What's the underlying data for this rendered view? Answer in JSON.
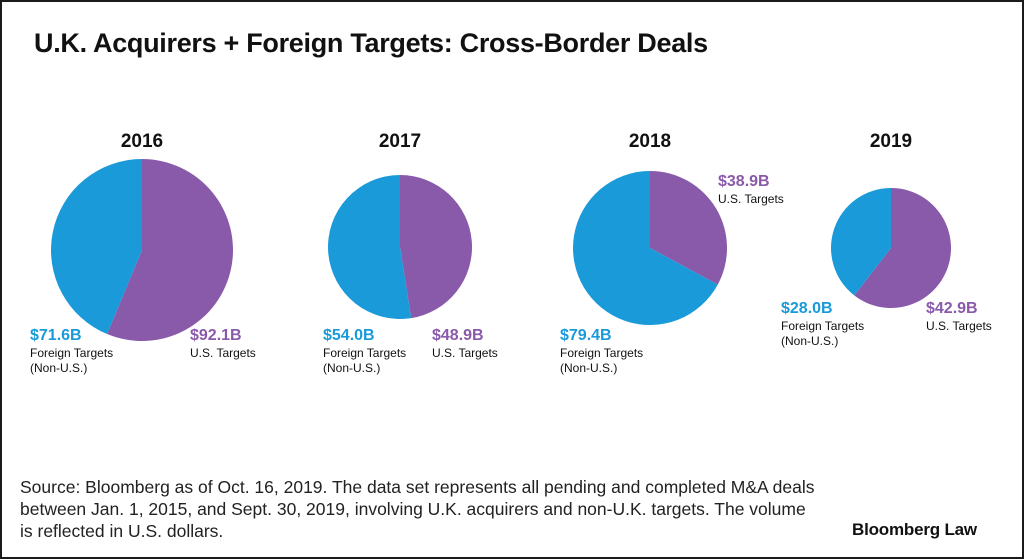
{
  "title": "U.K. Acquirers + Foreign Targets: Cross-Border Deals",
  "colors": {
    "foreign": "#1a9ad9",
    "us": "#8a5aaa"
  },
  "chart_data": [
    {
      "type": "pie",
      "title": "2016",
      "slices": [
        {
          "name": "U.S. Targets",
          "value": 92.1,
          "value_label": "$92.1B",
          "label_lines": [
            "U.S. Targets"
          ]
        },
        {
          "name": "Foreign Targets (Non-U.S.)",
          "value": 71.6,
          "value_label": "$71.6B",
          "label_lines": [
            "Foreign Targets",
            "(Non-U.S.)"
          ]
        }
      ]
    },
    {
      "type": "pie",
      "title": "2017",
      "slices": [
        {
          "name": "U.S. Targets",
          "value": 48.9,
          "value_label": "$48.9B",
          "label_lines": [
            "U.S. Targets"
          ]
        },
        {
          "name": "Foreign Targets (Non-U.S.)",
          "value": 54.0,
          "value_label": "$54.0B",
          "label_lines": [
            "Foreign Targets",
            "(Non-U.S.)"
          ]
        }
      ]
    },
    {
      "type": "pie",
      "title": "2018",
      "slices": [
        {
          "name": "U.S. Targets",
          "value": 38.9,
          "value_label": "$38.9B",
          "label_lines": [
            "U.S. Targets"
          ]
        },
        {
          "name": "Foreign Targets (Non-U.S.)",
          "value": 79.4,
          "value_label": "$79.4B",
          "label_lines": [
            "Foreign Targets",
            "(Non-U.S.)"
          ]
        }
      ]
    },
    {
      "type": "pie",
      "title": "2019",
      "slices": [
        {
          "name": "U.S. Targets",
          "value": 42.9,
          "value_label": "$42.9B",
          "label_lines": [
            "U.S. Targets"
          ]
        },
        {
          "name": "Foreign Targets (Non-U.S.)",
          "value": 28.0,
          "value_label": "$28.0B",
          "label_lines": [
            "Foreign Targets",
            "(Non-U.S.)"
          ]
        }
      ]
    }
  ],
  "source_note": "Source: Bloomberg as of Oct. 16, 2019. The data set represents all pending and completed M&A deals between Jan. 1, 2015, and Sept. 30, 2019, involving U.K. acquirers and non-U.K. targets. The volume is reflected in U.S. dollars.",
  "logo_text": "Bloomberg Law"
}
